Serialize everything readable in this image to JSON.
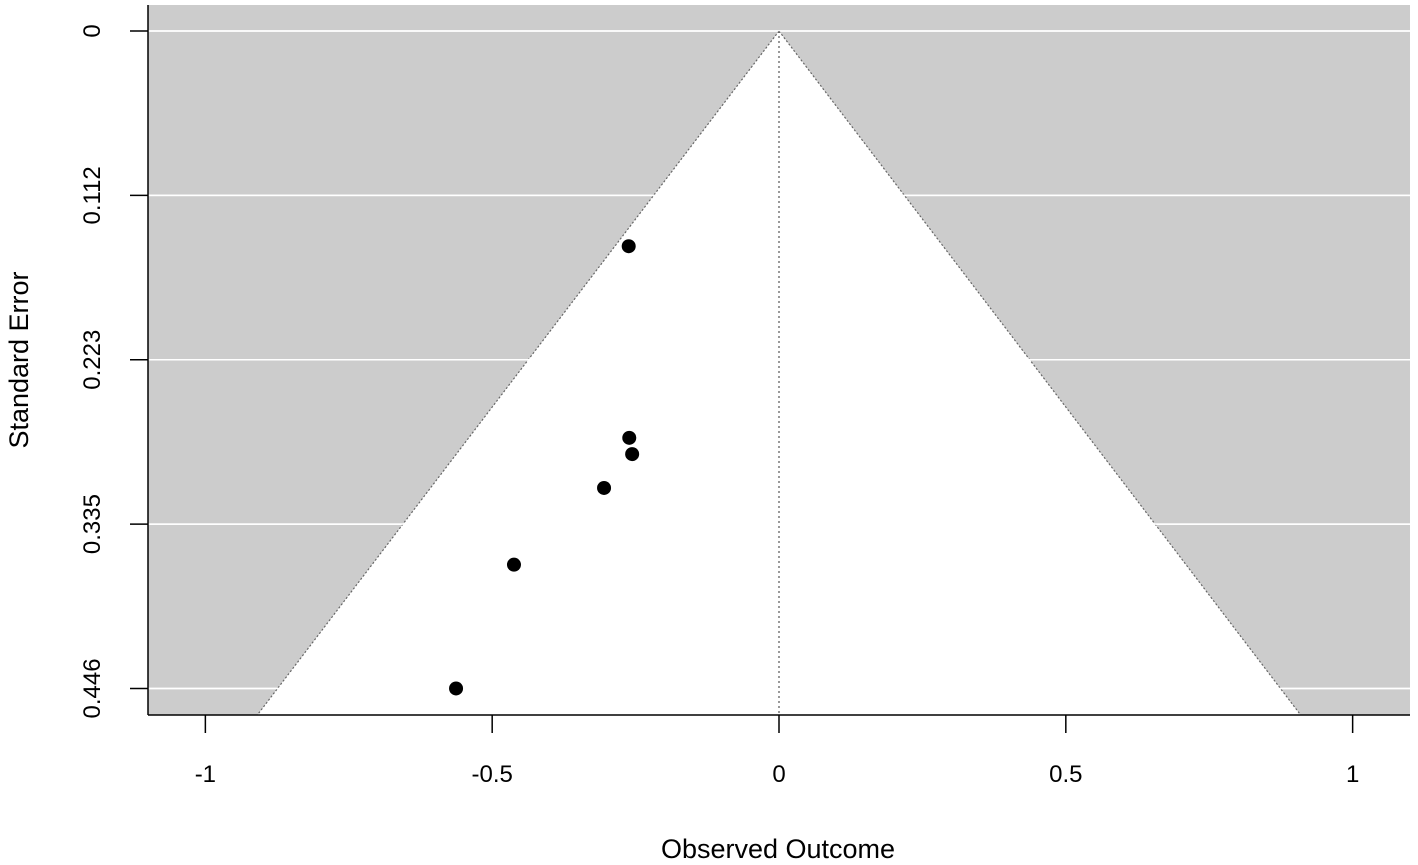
{
  "chart_data": {
    "type": "scatter",
    "subtype": "funnel",
    "xlabel": "Observed Outcome",
    "ylabel": "Standard Error",
    "xlim": [
      -1.1,
      1.1
    ],
    "ylim": [
      0,
      0.464
    ],
    "y_reversed": true,
    "x_ticks": [
      "-1",
      "-0.5",
      "0",
      "0.5",
      "1"
    ],
    "x_tick_values": [
      -1,
      -0.5,
      0,
      0.5,
      1
    ],
    "y_ticks": [
      "0",
      "0.112",
      "0.223",
      "0.335",
      "0.446"
    ],
    "y_tick_values": [
      0,
      0.1115,
      0.223,
      0.3345,
      0.446
    ],
    "reference_line_x": 0,
    "funnel_z": 1.96,
    "grid": true,
    "colors": {
      "background": "#cccccc",
      "funnel": "#ffffff",
      "points": "#000000",
      "grid": "#ffffff"
    },
    "points": [
      {
        "x": -0.262,
        "y": 0.146
      },
      {
        "x": -0.261,
        "y": 0.276
      },
      {
        "x": -0.256,
        "y": 0.287
      },
      {
        "x": -0.305,
        "y": 0.31
      },
      {
        "x": -0.462,
        "y": 0.362
      },
      {
        "x": -0.563,
        "y": 0.446
      }
    ]
  }
}
